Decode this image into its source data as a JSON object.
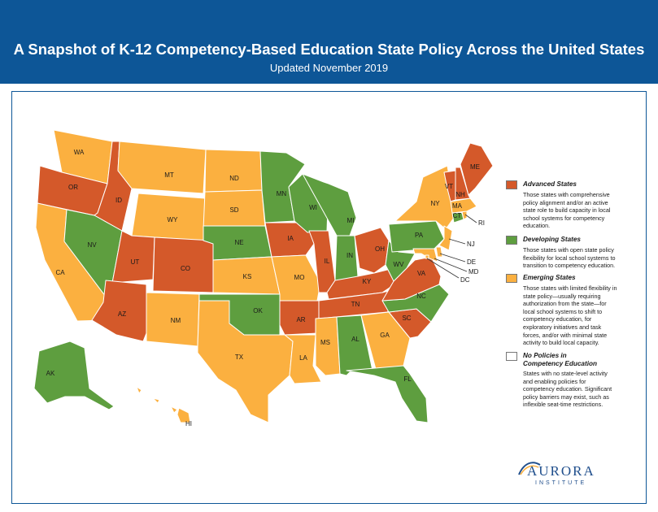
{
  "header": {
    "title": "A Snapshot of K-12 Competency-Based Education State Policy Across the United States",
    "subtitle": "Updated November 2019"
  },
  "colors": {
    "header_bg": "#0d5697",
    "advanced": "#d4592a",
    "developing": "#5e9e3f",
    "emerging": "#fbb040",
    "none": "#ffffff"
  },
  "legend": [
    {
      "key": "advanced",
      "title": "Advanced States",
      "lines": [
        "Those states with comprehensive",
        "policy alignment and/or an active",
        "state role to build capacity in local",
        "school systems for competency",
        "education."
      ]
    },
    {
      "key": "developing",
      "title": "Developing States",
      "lines": [
        "Those states with open state policy",
        "flexibility for local school systems to",
        "transition to competency education."
      ]
    },
    {
      "key": "emerging",
      "title": "Emerging States",
      "lines": [
        "Those states with limited flexibility in",
        "state policy—usually requiring",
        "authorization from the state—for",
        "local school systems to shift to",
        "competency education, for",
        "exploratory initiatives and task",
        "forces, and/or with minimal state",
        "activity to build local capacity."
      ]
    },
    {
      "key": "none",
      "title": "No Policies in\nCompetency Education",
      "lines": [
        "States with no state-level activity",
        "and enabling policies for",
        "competency education. Significant",
        "policy barriers may exist, such as",
        "inflexible seat-time restrictions."
      ]
    }
  ],
  "states": [
    {
      "code": "WA",
      "status": "emerging"
    },
    {
      "code": "OR",
      "status": "advanced"
    },
    {
      "code": "CA",
      "status": "emerging"
    },
    {
      "code": "ID",
      "status": "advanced"
    },
    {
      "code": "NV",
      "status": "developing"
    },
    {
      "code": "MT",
      "status": "emerging"
    },
    {
      "code": "WY",
      "status": "emerging"
    },
    {
      "code": "UT",
      "status": "advanced"
    },
    {
      "code": "AZ",
      "status": "advanced"
    },
    {
      "code": "CO",
      "status": "advanced"
    },
    {
      "code": "NM",
      "status": "emerging"
    },
    {
      "code": "ND",
      "status": "emerging"
    },
    {
      "code": "SD",
      "status": "emerging"
    },
    {
      "code": "NE",
      "status": "developing"
    },
    {
      "code": "KS",
      "status": "emerging"
    },
    {
      "code": "OK",
      "status": "developing"
    },
    {
      "code": "TX",
      "status": "emerging"
    },
    {
      "code": "MN",
      "status": "developing"
    },
    {
      "code": "IA",
      "status": "advanced"
    },
    {
      "code": "MO",
      "status": "emerging"
    },
    {
      "code": "AR",
      "status": "advanced"
    },
    {
      "code": "LA",
      "status": "emerging"
    },
    {
      "code": "WI",
      "status": "developing"
    },
    {
      "code": "IL",
      "status": "advanced"
    },
    {
      "code": "MI",
      "status": "developing"
    },
    {
      "code": "IN",
      "status": "developing"
    },
    {
      "code": "OH",
      "status": "advanced"
    },
    {
      "code": "KY",
      "status": "advanced"
    },
    {
      "code": "TN",
      "status": "advanced"
    },
    {
      "code": "MS",
      "status": "emerging"
    },
    {
      "code": "AL",
      "status": "developing"
    },
    {
      "code": "GA",
      "status": "emerging"
    },
    {
      "code": "FL",
      "status": "developing"
    },
    {
      "code": "SC",
      "status": "advanced"
    },
    {
      "code": "NC",
      "status": "developing"
    },
    {
      "code": "VA",
      "status": "advanced"
    },
    {
      "code": "WV",
      "status": "developing"
    },
    {
      "code": "PA",
      "status": "developing"
    },
    {
      "code": "NY",
      "status": "emerging"
    },
    {
      "code": "NJ",
      "status": "emerging"
    },
    {
      "code": "DE",
      "status": "emerging"
    },
    {
      "code": "MD",
      "status": "emerging"
    },
    {
      "code": "DC",
      "status": "emerging"
    },
    {
      "code": "CT",
      "status": "developing"
    },
    {
      "code": "RI",
      "status": "emerging"
    },
    {
      "code": "MA",
      "status": "emerging"
    },
    {
      "code": "VT",
      "status": "advanced"
    },
    {
      "code": "NH",
      "status": "advanced"
    },
    {
      "code": "ME",
      "status": "advanced"
    },
    {
      "code": "AK",
      "status": "developing"
    },
    {
      "code": "HI",
      "status": "emerging"
    }
  ],
  "logo": {
    "main": "AURORA",
    "sub": "INSTITUTE"
  }
}
